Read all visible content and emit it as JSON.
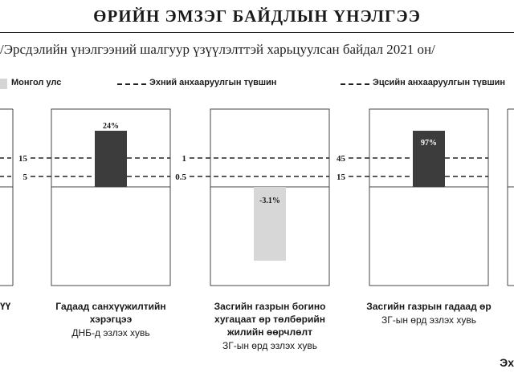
{
  "title": "ӨРИЙН ЭМЗЭГ БАЙДЛЫН ҮНЭЛГЭЭ",
  "subtitle": "/Эрсдэлийн үнэлгээний шалгуур үзүүлэлттэй харьцуулсан байдал 2021 он/",
  "legend": {
    "country": "Монгол улс",
    "early": "Эхний анхааруулгын түвшин",
    "late": "Эцсийн анхааруулгын түвшин"
  },
  "footer": "Эх",
  "colors": {
    "bar_dark": "#3c3c3c",
    "bar_light": "#d7d7d7",
    "panel_border": "#444444"
  },
  "left_caption_fragment": "ҮҮ",
  "chart_data": [
    {
      "type": "bar",
      "category": "Гадаад санхүүжилтийн хэрэгцээ",
      "value": 24,
      "value_label": "24%",
      "thresholds": [
        15,
        5
      ],
      "threshold_labels": [
        "15",
        "5"
      ],
      "caption_title": [
        "Гадаад санхүүжилтийн",
        "хэрэгцээ"
      ],
      "caption_sub": "ДНБ-д эзлэх хувь"
    },
    {
      "type": "bar",
      "category": "Засгийн газрын богино хугацаат өр төлбөрийн жилийн өөрчлөлт",
      "value": -3.1,
      "value_label": "-3.1%",
      "thresholds": [
        1,
        0.5
      ],
      "threshold_labels": [
        "1",
        "0.5"
      ],
      "caption_title": [
        "Засгийн газрын богино",
        "хугацаат өр төлбөрийн",
        "жилийн өөрчлөлт"
      ],
      "caption_sub": "ЗГ-ын өрд эзлэх хувь"
    },
    {
      "type": "bar",
      "category": "Засгийн газрын гадаад өр",
      "value": 97,
      "value_label": "97%",
      "thresholds": [
        45,
        15
      ],
      "threshold_labels": [
        "45",
        "15"
      ],
      "caption_title": [
        "Засгийн газрын гадаад өр"
      ],
      "caption_sub": "ЗГ-ын өрд эзлэх хувь"
    }
  ]
}
